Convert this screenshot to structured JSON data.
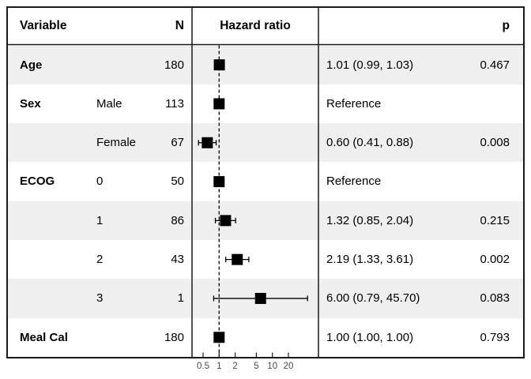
{
  "header": {
    "variable": "Variable",
    "n": "N",
    "hazard_ratio": "Hazard ratio",
    "p": "p"
  },
  "rows": [
    {
      "variable": "Age",
      "level": "",
      "n": "180",
      "hr": 1.01,
      "lo": 0.99,
      "hi": 1.03,
      "estimate": "1.01 (0.99, 1.03)",
      "p": "0.467",
      "shaded": true
    },
    {
      "variable": "Sex",
      "level": "Male",
      "n": "113",
      "hr": 1.0,
      "lo": null,
      "hi": null,
      "estimate": "Reference",
      "p": "",
      "shaded": false
    },
    {
      "variable": "",
      "level": "Female",
      "n": "67",
      "hr": 0.6,
      "lo": 0.41,
      "hi": 0.88,
      "estimate": "0.60 (0.41, 0.88)",
      "p": "0.008",
      "shaded": true
    },
    {
      "variable": "ECOG",
      "level": "0",
      "n": "50",
      "hr": 1.0,
      "lo": null,
      "hi": null,
      "estimate": "Reference",
      "p": "",
      "shaded": false
    },
    {
      "variable": "",
      "level": "1",
      "n": "86",
      "hr": 1.32,
      "lo": 0.85,
      "hi": 2.04,
      "estimate": "1.32 (0.85, 2.04)",
      "p": "0.215",
      "shaded": true
    },
    {
      "variable": "",
      "level": "2",
      "n": "43",
      "hr": 2.19,
      "lo": 1.33,
      "hi": 3.61,
      "estimate": "2.19 (1.33, 3.61)",
      "p": "0.002",
      "shaded": false
    },
    {
      "variable": "",
      "level": "3",
      "n": "1",
      "hr": 6.0,
      "lo": 0.79,
      "hi": 45.7,
      "estimate": "6.00 (0.79, 45.70)",
      "p": "0.083",
      "shaded": true
    },
    {
      "variable": "Meal Cal",
      "level": "",
      "n": "180",
      "hr": 1.0,
      "lo": 1.0,
      "hi": 1.0,
      "estimate": "1.00 (1.00, 1.00)",
      "p": "0.793",
      "shaded": false
    }
  ],
  "axis": {
    "scale": "log",
    "reference_line": 1,
    "ticks": [
      {
        "v": 0.5,
        "label": "0.5"
      },
      {
        "v": 1,
        "label": "1"
      },
      {
        "v": 2,
        "label": "2"
      },
      {
        "v": 5,
        "label": "5"
      },
      {
        "v": 10,
        "label": "10"
      },
      {
        "v": 20,
        "label": "20"
      }
    ]
  },
  "colors": {
    "stripe": "#EFEFEF",
    "marker": "#000000",
    "border": "#1A1A1A",
    "tick_text": "#4A4A4A"
  },
  "chart_data": {
    "type": "scatter",
    "subtype": "forest-plot",
    "title": "Hazard ratio",
    "x_scale": "log",
    "x_ticks": [
      0.5,
      1,
      2,
      5,
      10,
      20
    ],
    "reference_line": 1,
    "categories": [
      "Age",
      "Sex: Male",
      "Sex: Female",
      "ECOG: 0",
      "ECOG: 1",
      "ECOG: 2",
      "ECOG: 3",
      "Meal Cal"
    ],
    "n": [
      180,
      113,
      67,
      50,
      86,
      43,
      1,
      180
    ],
    "hazard_ratio": [
      1.01,
      1.0,
      0.6,
      1.0,
      1.32,
      2.19,
      6.0,
      1.0
    ],
    "ci_low": [
      0.99,
      null,
      0.41,
      null,
      0.85,
      1.33,
      0.79,
      1.0
    ],
    "ci_high": [
      1.03,
      null,
      0.88,
      null,
      2.04,
      3.61,
      45.7,
      1.0
    ],
    "p_values": [
      0.467,
      null,
      0.008,
      null,
      0.215,
      0.002,
      0.083,
      0.793
    ],
    "reference_rows": [
      "Sex: Male",
      "ECOG: 0"
    ]
  }
}
